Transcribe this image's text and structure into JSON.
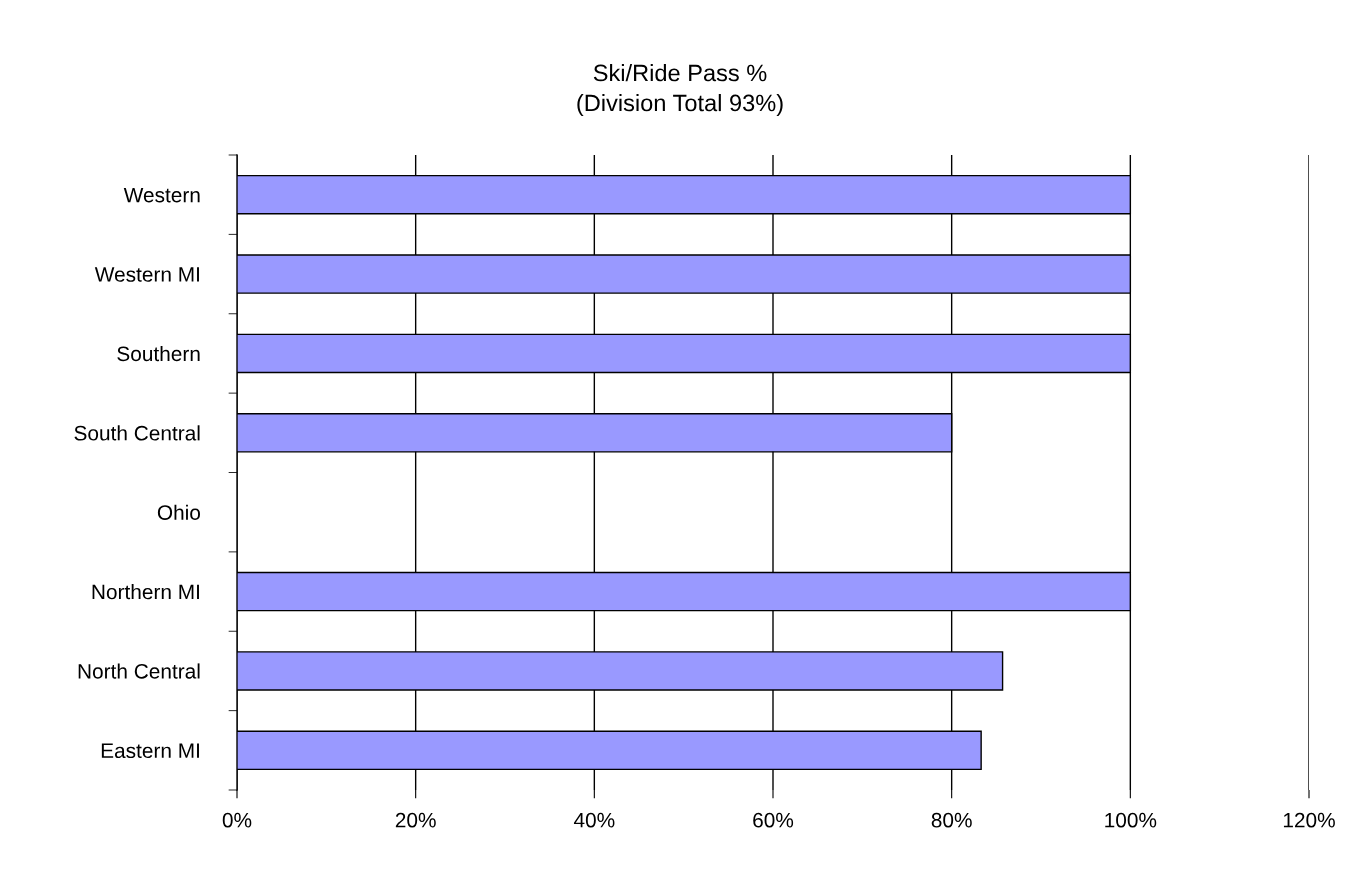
{
  "chart_data": {
    "type": "bar",
    "orientation": "horizontal",
    "title": "Ski/Ride Pass %",
    "subtitle": "(Division Total 93%)",
    "categories": [
      "Western",
      "Western MI",
      "Southern",
      "South Central",
      "Ohio",
      "Northern MI",
      "North Central",
      "Eastern MI"
    ],
    "values": [
      100,
      100,
      100,
      80,
      null,
      100,
      85.7,
      83.3
    ],
    "color": "#9999ff",
    "xlim": [
      0,
      120
    ],
    "xticks": [
      {
        "value": 0,
        "label": "0%"
      },
      {
        "value": 20,
        "label": "20%"
      },
      {
        "value": 40,
        "label": "40%"
      },
      {
        "value": 60,
        "label": "60%"
      },
      {
        "value": 80,
        "label": "80%"
      },
      {
        "value": 100,
        "label": "100%"
      },
      {
        "value": 120,
        "label": "120%"
      }
    ],
    "grid": "x",
    "legend": false
  }
}
